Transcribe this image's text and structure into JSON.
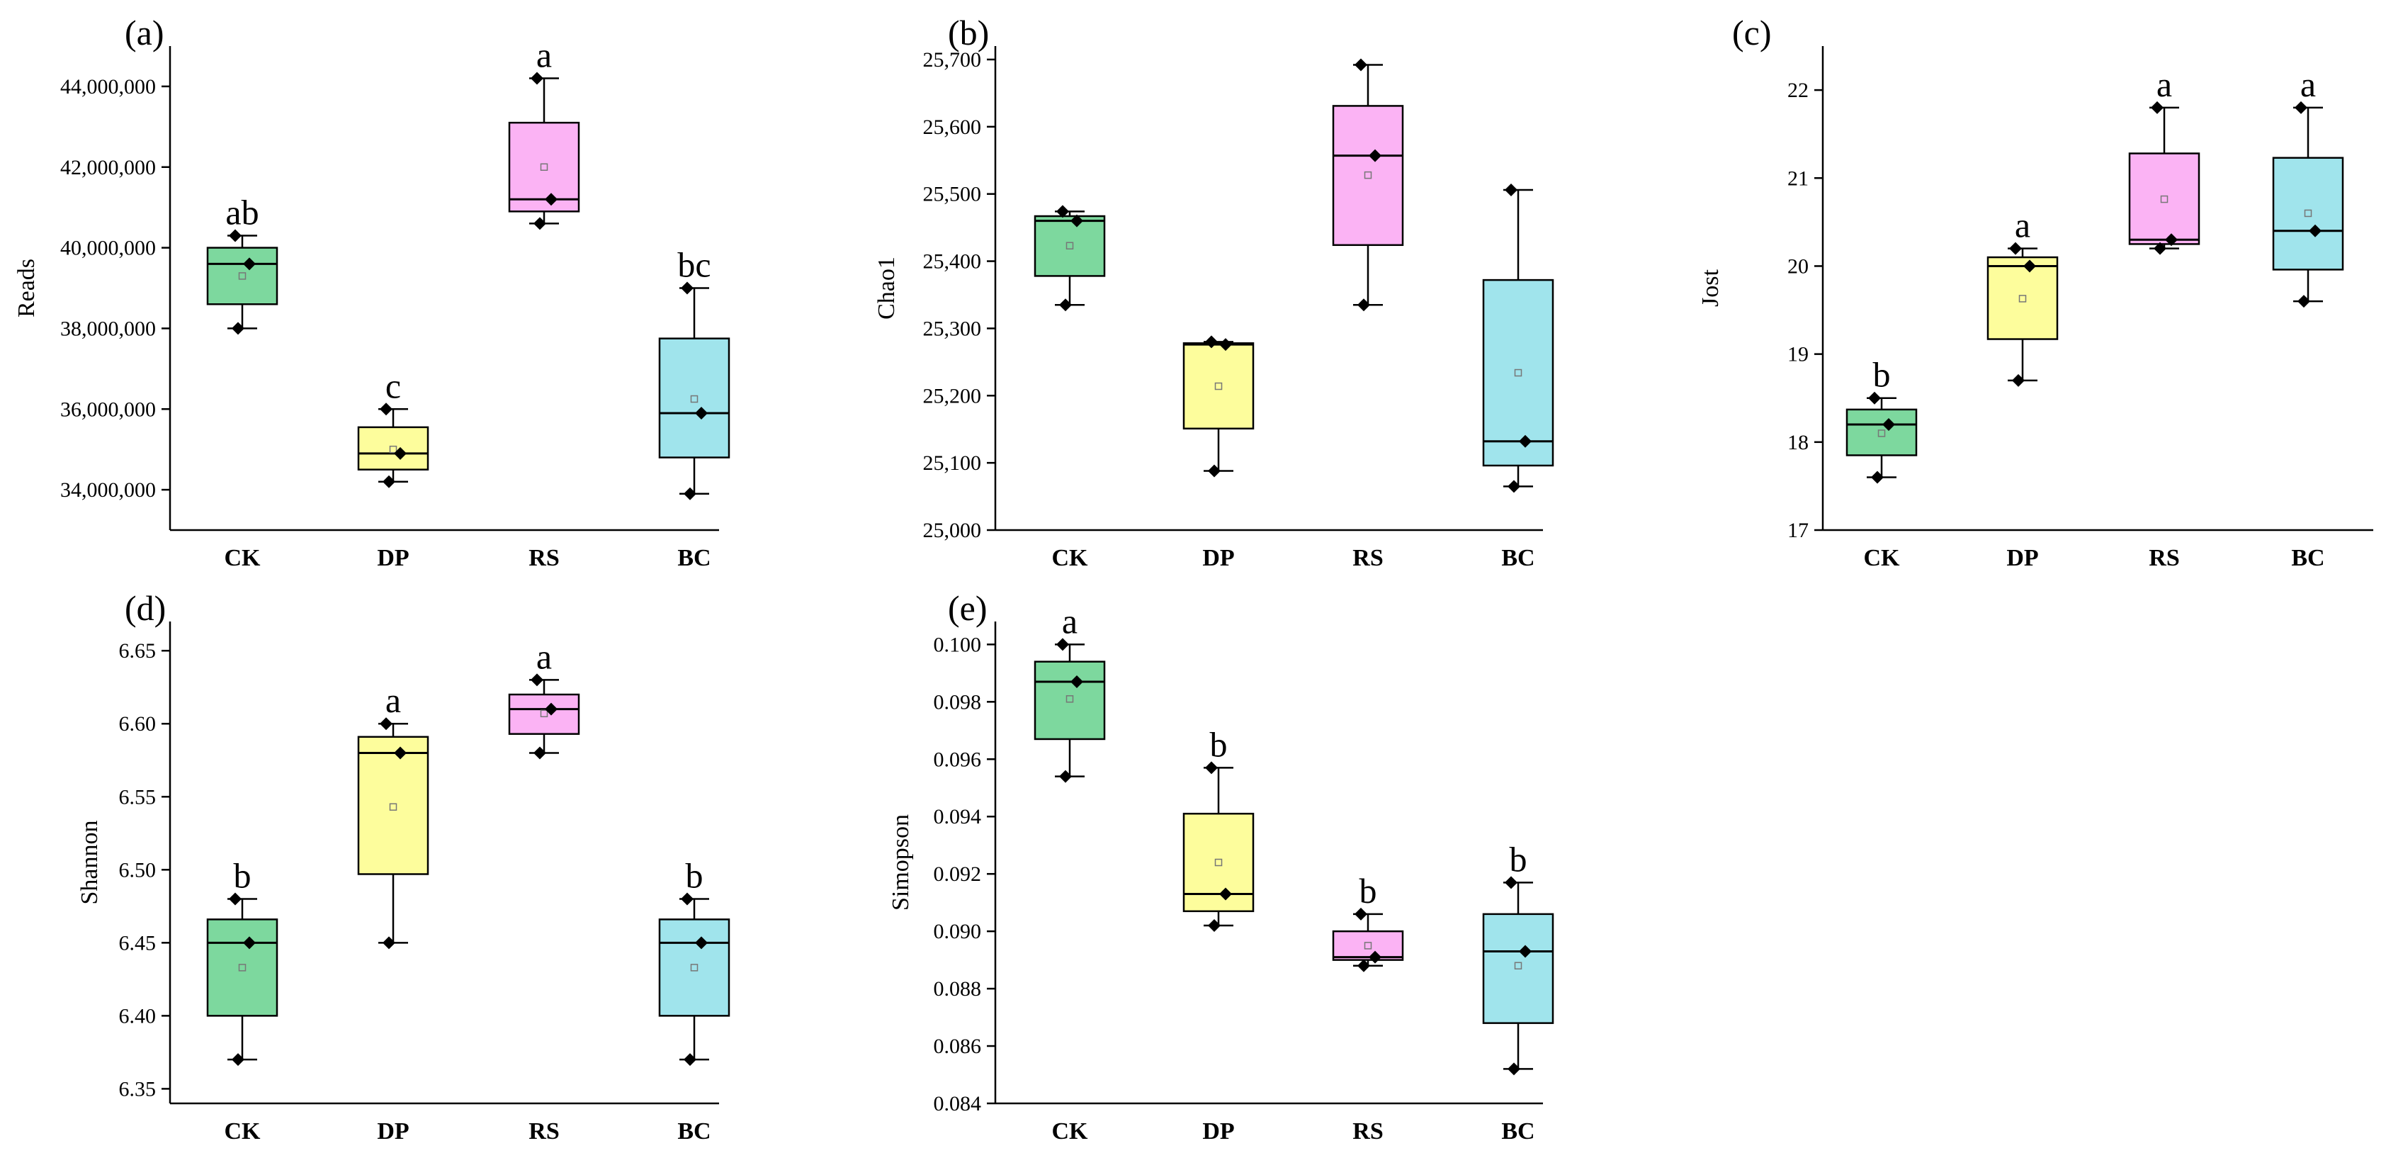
{
  "colors": {
    "CK": "#7dd89e",
    "DP": "#fdfd9c",
    "RS": "#fbb3f4",
    "BC": "#a0e4ec",
    "mean_marker": "#777777",
    "axis": "#000000"
  },
  "chart_data": [
    {
      "type": "box",
      "panel_label": "(a)",
      "ylabel": "Reads",
      "categories": [
        "CK",
        "DP",
        "RS",
        "BC"
      ],
      "ylim": [
        33000000,
        45000000
      ],
      "yticks": [
        34000000,
        36000000,
        38000000,
        40000000,
        42000000,
        44000000
      ],
      "ytick_labels": [
        "34,000,000",
        "36,000,000",
        "38,000,000",
        "40,000,000",
        "42,000,000",
        "44,000,000"
      ],
      "boxes": [
        {
          "category": "CK",
          "whisker_low": 38000000,
          "q1": 38600000,
          "median": 39600000,
          "q3": 40000000,
          "whisker_high": 40300000,
          "mean": 39300000,
          "points": [
            38000000,
            39600000,
            40300000
          ],
          "significance": "ab"
        },
        {
          "category": "DP",
          "whisker_low": 34200000,
          "q1": 34500000,
          "median": 34900000,
          "q3": 35550000,
          "whisker_high": 36000000,
          "mean": 35000000,
          "points": [
            34200000,
            34900000,
            36000000
          ],
          "significance": "c"
        },
        {
          "category": "RS",
          "whisker_low": 40600000,
          "q1": 40900000,
          "median": 41200000,
          "q3": 43100000,
          "whisker_high": 44200000,
          "mean": 42000000,
          "points": [
            40600000,
            41200000,
            44200000
          ],
          "significance": "a"
        },
        {
          "category": "BC",
          "whisker_low": 33900000,
          "q1": 34800000,
          "median": 35900000,
          "q3": 37750000,
          "whisker_high": 39000000,
          "mean": 36250000,
          "points": [
            33900000,
            35900000,
            39000000
          ],
          "significance": "bc"
        }
      ]
    },
    {
      "type": "box",
      "panel_label": "(b)",
      "ylabel": "Chao1",
      "categories": [
        "CK",
        "DP",
        "RS",
        "BC"
      ],
      "ylim": [
        25000,
        25720
      ],
      "yticks": [
        25000,
        25100,
        25200,
        25300,
        25400,
        25500,
        25600,
        25700
      ],
      "ytick_labels": [
        "25,000",
        "25,100",
        "25,200",
        "25,300",
        "25,400",
        "25,500",
        "25,600",
        "25,700"
      ],
      "boxes": [
        {
          "category": "CK",
          "whisker_low": 25335,
          "q1": 25378,
          "median": 25460,
          "q3": 25467,
          "whisker_high": 25474,
          "mean": 25423,
          "points": [
            25335,
            25460,
            25474
          ],
          "significance": ""
        },
        {
          "category": "DP",
          "whisker_low": 25088,
          "q1": 25151,
          "median": 25276,
          "q3": 25278,
          "whisker_high": 25280,
          "mean": 25214,
          "points": [
            25088,
            25276,
            25280
          ],
          "significance": ""
        },
        {
          "category": "RS",
          "whisker_low": 25335,
          "q1": 25424,
          "median": 25557,
          "q3": 25631,
          "whisker_high": 25692,
          "mean": 25528,
          "points": [
            25335,
            25557,
            25692
          ],
          "significance": ""
        },
        {
          "category": "BC",
          "whisker_low": 25065,
          "q1": 25096,
          "median": 25132,
          "q3": 25372,
          "whisker_high": 25506,
          "mean": 25234,
          "points": [
            25065,
            25132,
            25506
          ],
          "significance": ""
        }
      ]
    },
    {
      "type": "box",
      "panel_label": "(c)",
      "ylabel": "Jost",
      "categories": [
        "CK",
        "DP",
        "RS",
        "BC"
      ],
      "ylim": [
        17,
        22.5
      ],
      "yticks": [
        17,
        18,
        19,
        20,
        21,
        22
      ],
      "ytick_labels": [
        "17",
        "18",
        "19",
        "20",
        "21",
        "22"
      ],
      "boxes": [
        {
          "category": "CK",
          "whisker_low": 17.6,
          "q1": 17.85,
          "median": 18.2,
          "q3": 18.37,
          "whisker_high": 18.5,
          "mean": 18.1,
          "points": [
            17.6,
            18.2,
            18.5
          ],
          "significance": "b"
        },
        {
          "category": "DP",
          "whisker_low": 18.7,
          "q1": 19.17,
          "median": 20.0,
          "q3": 20.1,
          "whisker_high": 20.2,
          "mean": 19.63,
          "points": [
            18.7,
            20.0,
            20.2
          ],
          "significance": "a"
        },
        {
          "category": "RS",
          "whisker_low": 20.2,
          "q1": 20.25,
          "median": 20.3,
          "q3": 21.28,
          "whisker_high": 21.8,
          "mean": 20.76,
          "points": [
            20.2,
            20.3,
            21.8
          ],
          "significance": "a"
        },
        {
          "category": "BC",
          "whisker_low": 19.6,
          "q1": 19.96,
          "median": 20.4,
          "q3": 21.23,
          "whisker_high": 21.8,
          "mean": 20.6,
          "points": [
            19.6,
            20.4,
            21.8
          ],
          "significance": "a"
        }
      ]
    },
    {
      "type": "box",
      "panel_label": "(d)",
      "ylabel": "Shannon",
      "categories": [
        "CK",
        "DP",
        "RS",
        "BC"
      ],
      "ylim": [
        6.34,
        6.67
      ],
      "yticks": [
        6.35,
        6.4,
        6.45,
        6.5,
        6.55,
        6.6,
        6.65
      ],
      "ytick_labels": [
        "6.35",
        "6.40",
        "6.45",
        "6.50",
        "6.55",
        "6.60",
        "6.65"
      ],
      "boxes": [
        {
          "category": "CK",
          "whisker_low": 6.37,
          "q1": 6.4,
          "median": 6.45,
          "q3": 6.466,
          "whisker_high": 6.48,
          "mean": 6.433,
          "points": [
            6.37,
            6.45,
            6.48
          ],
          "significance": "b"
        },
        {
          "category": "DP",
          "whisker_low": 6.45,
          "q1": 6.497,
          "median": 6.58,
          "q3": 6.591,
          "whisker_high": 6.6,
          "mean": 6.543,
          "points": [
            6.45,
            6.58,
            6.6
          ],
          "significance": "a"
        },
        {
          "category": "RS",
          "whisker_low": 6.58,
          "q1": 6.593,
          "median": 6.61,
          "q3": 6.62,
          "whisker_high": 6.63,
          "mean": 6.607,
          "points": [
            6.58,
            6.61,
            6.63
          ],
          "significance": "a"
        },
        {
          "category": "BC",
          "whisker_low": 6.37,
          "q1": 6.4,
          "median": 6.45,
          "q3": 6.466,
          "whisker_high": 6.48,
          "mean": 6.433,
          "points": [
            6.37,
            6.45,
            6.48
          ],
          "significance": "b"
        }
      ]
    },
    {
      "type": "box",
      "panel_label": "(e)",
      "ylabel": "Simopson",
      "categories": [
        "CK",
        "DP",
        "RS",
        "BC"
      ],
      "ylim": [
        0.084,
        0.1008
      ],
      "yticks": [
        0.084,
        0.086,
        0.088,
        0.09,
        0.092,
        0.094,
        0.096,
        0.098,
        0.1
      ],
      "ytick_labels": [
        "0.084",
        "0.086",
        "0.088",
        "0.090",
        "0.092",
        "0.094",
        "0.096",
        "0.098",
        "0.100"
      ],
      "boxes": [
        {
          "category": "CK",
          "whisker_low": 0.0954,
          "q1": 0.0967,
          "median": 0.0987,
          "q3": 0.0994,
          "whisker_high": 0.1,
          "mean": 0.0981,
          "points": [
            0.0954,
            0.0987,
            0.1
          ],
          "significance": "a"
        },
        {
          "category": "DP",
          "whisker_low": 0.0902,
          "q1": 0.0907,
          "median": 0.0913,
          "q3": 0.0941,
          "whisker_high": 0.0957,
          "mean": 0.0924,
          "points": [
            0.0902,
            0.0913,
            0.0957
          ],
          "significance": "b"
        },
        {
          "category": "RS",
          "whisker_low": 0.0888,
          "q1": 0.089,
          "median": 0.0891,
          "q3": 0.09,
          "whisker_high": 0.0906,
          "mean": 0.0895,
          "points": [
            0.0888,
            0.0891,
            0.0906
          ],
          "significance": "b"
        },
        {
          "category": "BC",
          "whisker_low": 0.0852,
          "q1": 0.0868,
          "median": 0.0893,
          "q3": 0.0906,
          "whisker_high": 0.0917,
          "mean": 0.0888,
          "points": [
            0.0852,
            0.0893,
            0.0917
          ],
          "significance": "b"
        }
      ]
    }
  ]
}
